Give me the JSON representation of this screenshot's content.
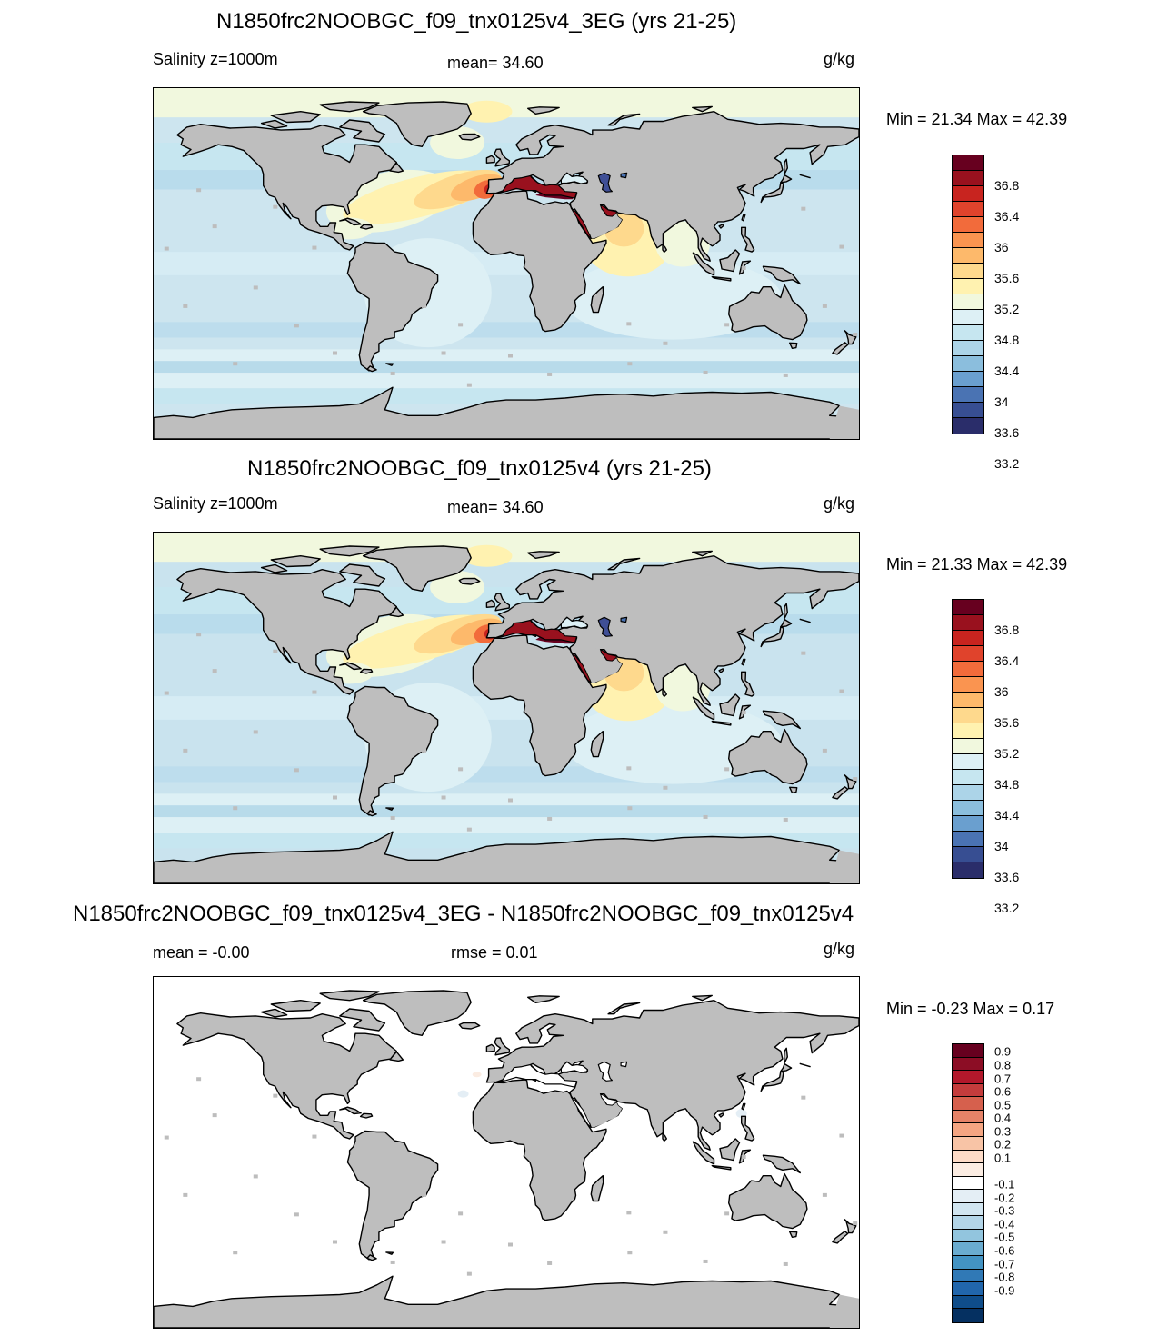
{
  "panels": [
    {
      "title": "N1850frc2NOOBGC_f09_tnx0125v4_3EG (yrs 21-25)",
      "left_label": "Salinity z=1000m",
      "center_label": "mean=  34.60",
      "units": "g/kg",
      "minmax": "Min =  21.34 Max =  42.39",
      "colorbar": {
        "colors": [
          "#67001f",
          "#99111e",
          "#c8241f",
          "#e0432c",
          "#f26b3b",
          "#fa9450",
          "#fdb96b",
          "#fed98d",
          "#fff2b0",
          "#f1f8de",
          "#ddf0f5",
          "#c6e6f0",
          "#acd4e8",
          "#8bbedd",
          "#6a9fcf",
          "#4a73b3",
          "#374e92",
          "#2a2d6a"
        ],
        "labels": [
          "36.8",
          "36.4",
          "36",
          "35.6",
          "35.2",
          "34.8",
          "34.4",
          "34",
          "33.6",
          "33.2"
        ]
      },
      "map": {
        "field_style": "mean",
        "ocean_base": "#cde5ef"
      }
    },
    {
      "title": "N1850frc2NOOBGC_f09_tnx0125v4 (yrs 21-25)",
      "left_label": "Salinity z=1000m",
      "center_label": "mean=  34.60",
      "units": "g/kg",
      "minmax": "Min =  21.33 Max =  42.39",
      "colorbar": {
        "colors": [
          "#67001f",
          "#99111e",
          "#c8241f",
          "#e0432c",
          "#f26b3b",
          "#fa9450",
          "#fdb96b",
          "#fed98d",
          "#fff2b0",
          "#f1f8de",
          "#ddf0f5",
          "#c6e6f0",
          "#acd4e8",
          "#8bbedd",
          "#6a9fcf",
          "#4a73b3",
          "#374e92",
          "#2a2d6a"
        ],
        "labels": [
          "36.8",
          "36.4",
          "36",
          "35.6",
          "35.2",
          "34.8",
          "34.4",
          "34",
          "33.6",
          "33.2"
        ]
      },
      "map": {
        "field_style": "mean",
        "ocean_base": "#c9e3ee"
      }
    },
    {
      "title": "N1850frc2NOOBGC_f09_tnx0125v4_3EG - N1850frc2NOOBGC_f09_tnx0125v4",
      "left_label": "mean =  -0.00",
      "center_label": "rmse =   0.01",
      "units": "g/kg",
      "minmax": "Min =  -0.23 Max =   0.17",
      "colorbar": {
        "colors": [
          "#67001f",
          "#8c0d25",
          "#b2182b",
          "#c43c3c",
          "#d6604d",
          "#e58368",
          "#f4a582",
          "#f8c4a6",
          "#fddbc7",
          "#fbece2",
          "#ffffff",
          "#e4eef5",
          "#d1e5f0",
          "#b3d5e8",
          "#92c5de",
          "#6aacd0",
          "#4393c3",
          "#3079b6",
          "#2166ac",
          "#0f4d8a",
          "#053061"
        ],
        "labels": [
          "0.9",
          "0.8",
          "0.7",
          "0.6",
          "0.5",
          "0.4",
          "0.3",
          "0.2",
          "0.1",
          "-0.1",
          "-0.2",
          "-0.3",
          "-0.4",
          "-0.5",
          "-0.6",
          "-0.7",
          "-0.8",
          "-0.9"
        ]
      },
      "map": {
        "field_style": "diff",
        "ocean_base": "#ffffff"
      }
    }
  ]
}
